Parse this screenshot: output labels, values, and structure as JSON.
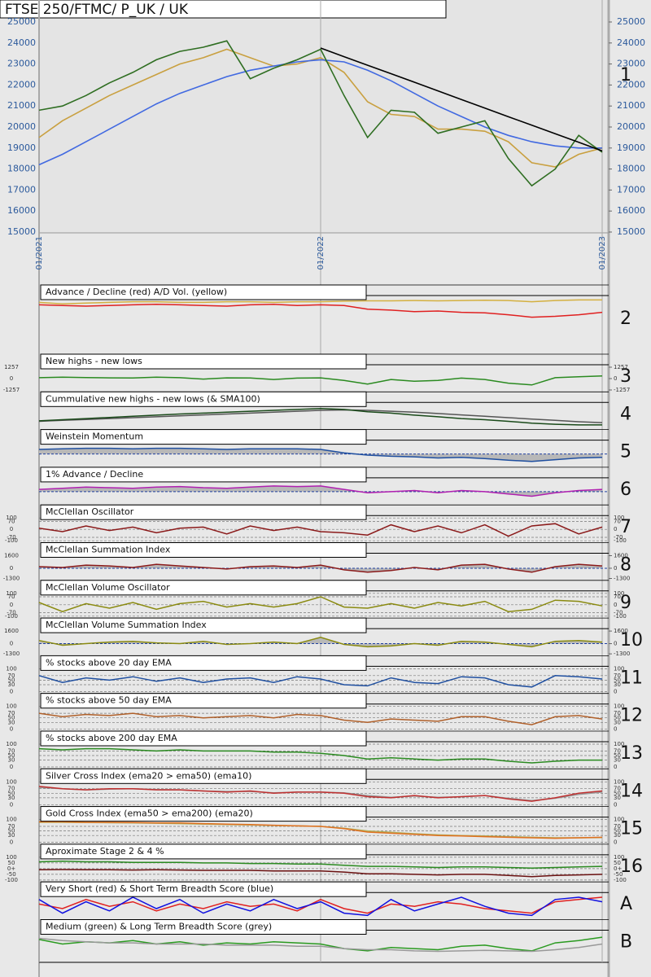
{
  "chart_data": [
    {
      "type": "line",
      "title": "FTSE 250/FTMC/ P_UK / UK",
      "panel_label": "1",
      "categories": [
        "01/2021",
        null,
        null,
        null,
        null,
        null,
        null,
        null,
        null,
        null,
        null,
        null,
        "01/2022",
        null,
        null,
        null,
        null,
        null,
        null,
        null,
        null,
        null,
        null,
        null,
        "01/2023"
      ],
      "ylim": [
        15000,
        25000
      ],
      "yticks": [
        15000,
        16000,
        17000,
        18000,
        19000,
        20000,
        21000,
        22000,
        23000,
        24000,
        25000
      ],
      "series": [
        {
          "color": "#c9a040",
          "values": [
            19500,
            20300,
            20900,
            21500,
            22000,
            22500,
            23000,
            23300,
            23700,
            23300,
            22900,
            23000,
            23300,
            22600,
            21200,
            20600,
            20500,
            19900,
            19900,
            19800,
            19300,
            18300,
            18100,
            18700,
            19000
          ]
        },
        {
          "color": "#4169e1",
          "values": [
            18200,
            18700,
            19300,
            19900,
            20500,
            21100,
            21600,
            22000,
            22400,
            22700,
            22900,
            23100,
            23200,
            23100,
            22700,
            22200,
            21600,
            21000,
            20500,
            20000,
            19600,
            19300,
            19100,
            19000,
            19000
          ]
        },
        {
          "color": "#2f6e22",
          "values": [
            20800,
            21000,
            21500,
            22100,
            22600,
            23200,
            23600,
            23800,
            24100,
            22300,
            22800,
            23200,
            23700,
            21500,
            19500,
            20800,
            20700,
            19700,
            20000,
            20300,
            18500,
            17200,
            18000,
            19600,
            18800
          ]
        },
        {
          "color": "#000000",
          "values": [
            null,
            null,
            null,
            null,
            null,
            null,
            null,
            null,
            null,
            null,
            null,
            null,
            23760,
            23350,
            22940,
            22540,
            22130,
            21720,
            21310,
            20900,
            20490,
            20090,
            19680,
            19270,
            18860
          ]
        }
      ]
    },
    {
      "type": "line",
      "title": "Advance / Decline (red) A/D Vol. (yellow)",
      "panel_label": "2",
      "ylim": [
        0,
        100
      ],
      "series": [
        {
          "color": "#d4b040",
          "values": [
            70,
            65,
            68,
            70,
            72,
            72,
            70,
            70,
            72,
            72,
            70,
            72,
            72,
            74,
            75,
            75,
            76,
            75,
            76,
            77,
            76,
            72,
            76,
            78,
            78
          ]
        },
        {
          "color": "#e02020",
          "values": [
            62,
            60,
            58,
            60,
            62,
            64,
            62,
            60,
            58,
            62,
            64,
            60,
            62,
            60,
            48,
            45,
            40,
            42,
            38,
            36,
            30,
            22,
            25,
            30,
            38
          ]
        }
      ]
    },
    {
      "type": "line",
      "title": "New highs - new lows",
      "panel_label": "3",
      "ylim": [
        -1257,
        1257
      ],
      "yticks": [
        1257,
        0,
        -1257
      ],
      "series": [
        {
          "color": "#2a8a20",
          "values": [
            100,
            150,
            120,
            80,
            60,
            150,
            100,
            -50,
            80,
            60,
            -100,
            50,
            80,
            -200,
            -600,
            -100,
            -300,
            -200,
            50,
            -100,
            -500,
            -700,
            100,
            200,
            300
          ]
        }
      ]
    },
    {
      "type": "line",
      "title": "Cummulative new highs - new lows (& SMA100)",
      "panel_label": "4",
      "ylim": [
        0,
        100
      ],
      "series": [
        {
          "color": "#555555",
          "values": [
            28,
            32,
            36,
            40,
            44,
            48,
            52,
            56,
            60,
            64,
            68,
            72,
            76,
            78,
            76,
            72,
            68,
            62,
            56,
            50,
            44,
            38,
            32,
            26,
            22
          ]
        },
        {
          "color": "#1a4a1a",
          "values": [
            30,
            35,
            40,
            45,
            50,
            55,
            60,
            64,
            68,
            72,
            76,
            80,
            84,
            80,
            70,
            64,
            55,
            48,
            40,
            35,
            28,
            20,
            15,
            12,
            12
          ]
        }
      ]
    },
    {
      "type": "line",
      "title": "Weinstein Momentum",
      "panel_label": "5",
      "ylim": [
        -100,
        100
      ],
      "fill": true,
      "series": [
        {
          "color": "#1f4fa0",
          "values": [
            40,
            45,
            50,
            50,
            45,
            50,
            50,
            45,
            40,
            45,
            45,
            45,
            40,
            10,
            -10,
            -20,
            -25,
            -35,
            -30,
            -40,
            -55,
            -65,
            -50,
            -35,
            -30
          ]
        }
      ]
    },
    {
      "type": "line",
      "title": "1% Advance / Decline",
      "panel_label": "6",
      "ylim": [
        -100,
        100
      ],
      "fill": true,
      "series": [
        {
          "color": "#b020b0",
          "values": [
            20,
            30,
            40,
            35,
            30,
            40,
            45,
            35,
            30,
            40,
            50,
            45,
            50,
            20,
            -10,
            0,
            10,
            -10,
            10,
            0,
            -20,
            -40,
            -10,
            10,
            20
          ]
        }
      ]
    },
    {
      "type": "line",
      "title": "McClellan Oscillator",
      "panel_label": "7",
      "ylim": [
        -100,
        100
      ],
      "yticks": [
        100,
        70,
        0,
        -70,
        -100
      ],
      "grid": true,
      "series": [
        {
          "color": "#8b1a1a",
          "values": [
            10,
            -20,
            30,
            -10,
            20,
            -30,
            10,
            20,
            -40,
            30,
            -10,
            20,
            -20,
            -30,
            -50,
            40,
            -20,
            30,
            -30,
            40,
            -60,
            30,
            50,
            -40,
            20
          ]
        }
      ]
    },
    {
      "type": "line",
      "title": "McClellan Summation Index",
      "panel_label": "8",
      "ylim": [
        -1300,
        1600
      ],
      "yticks": [
        1600,
        0,
        -1300
      ],
      "fill": true,
      "series": [
        {
          "color": "#8b1a1a",
          "values": [
            200,
            100,
            400,
            300,
            100,
            500,
            300,
            100,
            -100,
            200,
            300,
            100,
            400,
            -200,
            -500,
            -300,
            100,
            -200,
            400,
            500,
            -100,
            -500,
            200,
            500,
            300
          ]
        }
      ]
    },
    {
      "type": "line",
      "title": "McClellan Volume Oscillator",
      "panel_label": "9",
      "ylim": [
        -100,
        100
      ],
      "yticks": [
        100,
        70,
        0,
        -70,
        -100
      ],
      "grid": true,
      "series": [
        {
          "color": "#8a8a10",
          "values": [
            20,
            -60,
            10,
            -30,
            20,
            -40,
            10,
            30,
            -20,
            10,
            -20,
            10,
            70,
            -20,
            -30,
            10,
            -30,
            20,
            -10,
            30,
            -60,
            -40,
            40,
            30,
            -10
          ]
        }
      ]
    },
    {
      "type": "line",
      "title": "McClellan Volume Summation Index",
      "panel_label": "10",
      "ylim": [
        -1300,
        1600
      ],
      "yticks": [
        1600,
        0,
        -1300
      ],
      "fill": true,
      "series": [
        {
          "color": "#8a8a10",
          "values": [
            400,
            -200,
            0,
            200,
            300,
            100,
            0,
            300,
            -100,
            0,
            200,
            0,
            800,
            -100,
            -400,
            -300,
            0,
            -200,
            300,
            200,
            -100,
            -400,
            300,
            400,
            200
          ]
        }
      ]
    },
    {
      "type": "line",
      "title": "% stocks above 20 day EMA",
      "panel_label": "11",
      "ylim": [
        0,
        100
      ],
      "yticks": [
        100,
        70,
        50,
        30,
        0
      ],
      "grid": true,
      "series": [
        {
          "color": "#1f4fa0",
          "values": [
            70,
            40,
            60,
            50,
            65,
            45,
            60,
            40,
            55,
            60,
            40,
            65,
            55,
            30,
            25,
            60,
            40,
            35,
            65,
            60,
            30,
            20,
            70,
            65,
            55
          ]
        }
      ]
    },
    {
      "type": "line",
      "title": "% stocks above 50 day EMA",
      "panel_label": "12",
      "ylim": [
        0,
        100
      ],
      "yticks": [
        100,
        70,
        50,
        30,
        0
      ],
      "grid": true,
      "series": [
        {
          "color": "#b0602a",
          "values": [
            70,
            55,
            65,
            60,
            70,
            55,
            60,
            50,
            55,
            60,
            50,
            65,
            60,
            40,
            30,
            45,
            40,
            35,
            55,
            55,
            35,
            20,
            55,
            60,
            45
          ]
        }
      ]
    },
    {
      "type": "line",
      "title": "% stocks above 200 day EMA",
      "panel_label": "13",
      "ylim": [
        0,
        100
      ],
      "yticks": [
        100,
        70,
        50,
        30,
        0
      ],
      "grid": true,
      "series": [
        {
          "color": "#2a8a20",
          "values": [
            80,
            75,
            80,
            80,
            75,
            70,
            75,
            70,
            70,
            70,
            65,
            65,
            60,
            50,
            35,
            40,
            35,
            30,
            35,
            35,
            25,
            18,
            25,
            30,
            30
          ]
        }
      ]
    },
    {
      "type": "line",
      "title": "Silver Cross Index (ema20 > ema50) (ema10)",
      "panel_label": "14",
      "ylim": [
        0,
        100
      ],
      "yticks": [
        100,
        70,
        50,
        30,
        0
      ],
      "grid": true,
      "series": [
        {
          "color": "#999999",
          "values": [
            75,
            70,
            65,
            68,
            70,
            66,
            65,
            60,
            58,
            58,
            52,
            55,
            55,
            52,
            40,
            32,
            38,
            32,
            34,
            40,
            28,
            18,
            28,
            45,
            55
          ]
        },
        {
          "color": "#c03030",
          "values": [
            80,
            70,
            65,
            70,
            70,
            65,
            65,
            60,
            55,
            60,
            50,
            55,
            55,
            50,
            35,
            30,
            40,
            30,
            35,
            40,
            25,
            15,
            30,
            50,
            60
          ]
        }
      ]
    },
    {
      "type": "line",
      "title": "Gold Cross Index (ema50 > ema200) (ema20)",
      "panel_label": "15",
      "ylim": [
        0,
        100
      ],
      "yticks": [
        100,
        70,
        50,
        30,
        0
      ],
      "grid": true,
      "series": [
        {
          "color": "#b0b060",
          "values": [
            88,
            88,
            87,
            86,
            85,
            84,
            82,
            80,
            78,
            76,
            74,
            72,
            70,
            62,
            50,
            44,
            38,
            33,
            30,
            28,
            25,
            22,
            20,
            20,
            21
          ]
        },
        {
          "color": "#e07020",
          "values": [
            90,
            90,
            88,
            88,
            87,
            85,
            85,
            82,
            80,
            78,
            75,
            72,
            70,
            60,
            45,
            40,
            35,
            30,
            28,
            25,
            22,
            20,
            18,
            20,
            22
          ]
        }
      ]
    },
    {
      "type": "line",
      "title": "Aproximate Stage 2 & 4 %",
      "panel_label": "16",
      "ylim": [
        -100,
        100
      ],
      "yticks": [
        100,
        50,
        {
          "value": 0,
          "label": "0+"
        },
        -50,
        -100
      ],
      "grid": true,
      "series": [
        {
          "color": "#2a8a20",
          "values": [
            60,
            65,
            60,
            60,
            55,
            55,
            55,
            50,
            50,
            45,
            45,
            40,
            40,
            30,
            20,
            20,
            15,
            10,
            15,
            15,
            10,
            5,
            10,
            15,
            20
          ]
        },
        {
          "color": "#6a1010",
          "values": [
            -10,
            -8,
            -10,
            -10,
            -12,
            -10,
            -12,
            -15,
            -15,
            -15,
            -20,
            -20,
            -20,
            -30,
            -45,
            -45,
            -50,
            -55,
            -50,
            -50,
            -60,
            -70,
            -60,
            -55,
            -50
          ]
        }
      ]
    },
    {
      "type": "line",
      "title": "Very Short (red) & Short Term Breadth Score (blue)",
      "panel_label": "A",
      "ylim": [
        0,
        100
      ],
      "series": [
        {
          "color": "#e02020",
          "values": [
            60,
            40,
            80,
            50,
            70,
            30,
            60,
            40,
            70,
            50,
            60,
            30,
            80,
            40,
            20,
            60,
            50,
            70,
            60,
            40,
            30,
            20,
            70,
            80,
            90
          ]
        },
        {
          "color": "#1010e0",
          "values": [
            80,
            20,
            70,
            30,
            90,
            40,
            80,
            20,
            60,
            30,
            80,
            40,
            70,
            20,
            10,
            80,
            30,
            60,
            90,
            50,
            20,
            10,
            80,
            90,
            70
          ]
        }
      ]
    },
    {
      "type": "line",
      "title": "Medium (green) & Long Term Breadth Score (grey)",
      "panel_label": "B",
      "ylim": [
        0,
        100
      ],
      "series": [
        {
          "color": "#2a9a20",
          "values": [
            70,
            50,
            60,
            55,
            65,
            50,
            60,
            45,
            55,
            50,
            60,
            55,
            50,
            30,
            20,
            35,
            30,
            25,
            40,
            45,
            30,
            20,
            55,
            65,
            80
          ]
        },
        {
          "color": "#999999",
          "values": [
            75,
            65,
            60,
            55,
            55,
            50,
            50,
            50,
            45,
            45,
            45,
            40,
            40,
            30,
            25,
            25,
            20,
            18,
            20,
            22,
            20,
            18,
            25,
            35,
            50
          ]
        }
      ]
    }
  ]
}
